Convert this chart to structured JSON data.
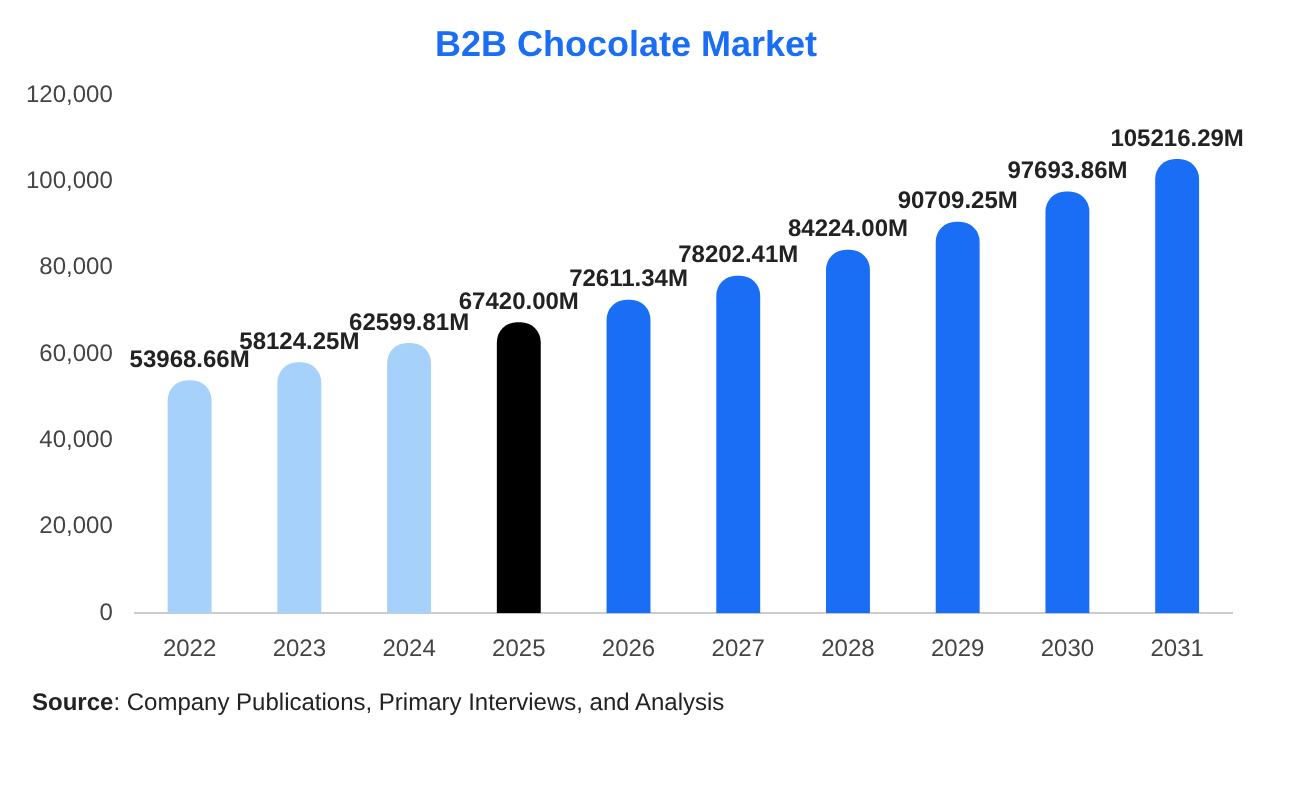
{
  "chart_data": {
    "type": "bar",
    "title": "B2B Chocolate Market",
    "categories": [
      "2022",
      "2023",
      "2024",
      "2025",
      "2026",
      "2027",
      "2028",
      "2029",
      "2030",
      "2031"
    ],
    "values": [
      53968.66,
      58124.25,
      62599.81,
      67420.0,
      72611.34,
      78202.41,
      84224.0,
      90709.25,
      97693.86,
      105216.29
    ],
    "colors": [
      "#a6d1fb",
      "#a6d1fb",
      "#a6d1fb",
      "#000000",
      "#1a6ef5",
      "#1a6ef5",
      "#1a6ef5",
      "#1a6ef5",
      "#1a6ef5",
      "#1a6ef5"
    ],
    "value_labels": [
      "53968.66M",
      "58124.25M",
      "62599.81M",
      "67420.00M",
      "72611.34M",
      "78202.41M",
      "84224.00M",
      "90709.25M",
      "97693.86M",
      "105216.29M"
    ],
    "ylim": [
      0,
      120000
    ],
    "yticks": [
      0,
      {
        "value": 20000,
        "label": "20,000"
      },
      {
        "value": 40000,
        "label": "40,000"
      },
      {
        "value": 60000,
        "label": "60,000"
      },
      {
        "value": 80000,
        "label": "80,000"
      },
      {
        "value": 100000,
        "label": "100,000"
      },
      {
        "value": 120000,
        "label": "120,000"
      }
    ],
    "grid": false,
    "legend": false,
    "annotations": [
      "Source: Company Publications, Primary Interviews, and Analysis"
    ]
  }
}
